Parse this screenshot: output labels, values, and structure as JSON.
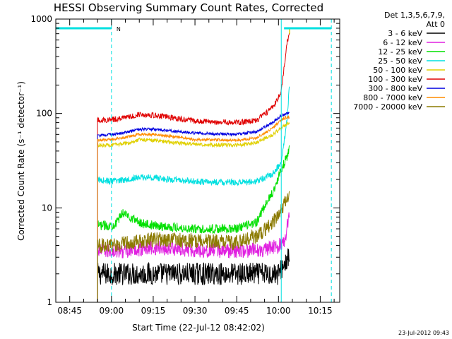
{
  "chart_data": {
    "type": "line",
    "title": "HESSI Observing Summary Count Rates, Corrected",
    "xlabel": "Start Time (22-Jul-12 08:42:02)",
    "ylabel": "Corrected Count Rate (s⁻¹ detector⁻¹)",
    "y_scale": "log",
    "ylim": [
      1,
      1000
    ],
    "xlim": [
      "08:40",
      "10:22"
    ],
    "x_ticks": [
      "08:45",
      "09:00",
      "09:15",
      "09:30",
      "09:45",
      "10:00",
      "10:15"
    ],
    "y_ticks": [
      "1",
      "10",
      "100",
      "1000"
    ],
    "grid": false,
    "legend_header": [
      "Det 1,3,5,6,7,9,",
      "Att 0"
    ],
    "legend_position": "right",
    "footer": "23-Jul-2012 09:43",
    "night_marker": "N",
    "series": [
      {
        "name": "3 - 6 keV",
        "color": "#000000",
        "noise": 0.12,
        "x": [
          "08:55",
          "09:00",
          "09:05",
          "09:15",
          "09:30",
          "09:45",
          "09:55",
          "10:00",
          "10:02",
          "10:04"
        ],
        "values": [
          2,
          2,
          2,
          2,
          2,
          2,
          2,
          2,
          2.5,
          3
        ]
      },
      {
        "name": "6 - 12 keV",
        "color": "#e020e0",
        "noise": 0.08,
        "x": [
          "08:55",
          "09:00",
          "09:05",
          "09:15",
          "09:30",
          "09:45",
          "09:55",
          "10:00",
          "10:02",
          "10:03",
          "10:04"
        ],
        "values": [
          3.5,
          3.5,
          3.5,
          3.8,
          3.6,
          3.5,
          3.6,
          3.9,
          4.5,
          6,
          10
        ]
      },
      {
        "name": "12 - 25 keV",
        "color": "#00e000",
        "noise": 0.05,
        "x": [
          "08:55",
          "09:00",
          "09:02",
          "09:04",
          "09:10",
          "09:15",
          "09:30",
          "09:45",
          "09:52",
          "09:58",
          "10:01",
          "10:03",
          "10:04"
        ],
        "values": [
          6.5,
          6.5,
          7,
          9,
          7,
          6.5,
          6,
          6,
          7,
          15,
          25,
          35,
          45
        ]
      },
      {
        "name": "25 - 50 keV",
        "color": "#00e0e0",
        "noise": 0.035,
        "x": [
          "08:55",
          "09:00",
          "09:05",
          "09:10",
          "09:15",
          "09:20",
          "09:30",
          "09:45",
          "09:52",
          "09:58",
          "10:01",
          "10:03",
          "10:04"
        ],
        "values": [
          20,
          19,
          20,
          21,
          21,
          20,
          19,
          18.5,
          19,
          23,
          30,
          80,
          220
        ]
      },
      {
        "name": "50 - 100 keV",
        "color": "#e0d000",
        "noise": 0.02,
        "x": [
          "08:55",
          "09:00",
          "09:05",
          "09:10",
          "09:15",
          "09:20",
          "09:30",
          "09:45",
          "09:52",
          "09:58",
          "10:01",
          "10:03",
          "10:04"
        ],
        "values": [
          46,
          46,
          48,
          53,
          52,
          50,
          47,
          46,
          49,
          60,
          70,
          78,
          80
        ]
      },
      {
        "name": "100 - 300 keV",
        "color": "#e00000",
        "noise": 0.03,
        "x": [
          "08:55",
          "09:00",
          "09:05",
          "09:10",
          "09:15",
          "09:20",
          "09:30",
          "09:45",
          "09:52",
          "09:58",
          "10:01",
          "10:02",
          "10:03",
          "10:04"
        ],
        "values": [
          85,
          86,
          90,
          98,
          96,
          92,
          83,
          80,
          84,
          115,
          170,
          300,
          550,
          700
        ]
      },
      {
        "name": "300 - 800 keV",
        "color": "#0000e0",
        "noise": 0.015,
        "x": [
          "08:55",
          "09:00",
          "09:05",
          "09:10",
          "09:15",
          "09:20",
          "09:30",
          "09:45",
          "09:52",
          "09:58",
          "10:01",
          "10:03",
          "10:04"
        ],
        "values": [
          58,
          60,
          63,
          68,
          68,
          66,
          62,
          60,
          64,
          80,
          95,
          100,
          102
        ]
      },
      {
        "name": "800 - 7000 keV",
        "color": "#ff8c00",
        "noise": 0.015,
        "x": [
          "08:55",
          "09:00",
          "09:05",
          "09:10",
          "09:15",
          "09:20",
          "09:30",
          "09:45",
          "09:52",
          "09:58",
          "10:01",
          "10:03",
          "10:04"
        ],
        "values": [
          52,
          53,
          56,
          60,
          60,
          58,
          53,
          52,
          55,
          70,
          85,
          92,
          90
        ]
      },
      {
        "name": "7000 - 20000 keV",
        "color": "#8b7a00",
        "noise": 0.08,
        "x": [
          "08:55",
          "09:00",
          "09:05",
          "09:15",
          "09:30",
          "09:45",
          "09:52",
          "09:58",
          "10:01",
          "10:03",
          "10:04"
        ],
        "values": [
          4,
          4,
          4.3,
          4.6,
          4.5,
          4.3,
          5,
          7,
          10,
          12,
          13
        ]
      }
    ],
    "flags": {
      "name": "attenuator/night flags",
      "color": "#00e0e0",
      "segments": [
        [
          "08:40",
          "09:00"
        ],
        [
          "10:02",
          "10:19"
        ]
      ],
      "level": 800
    },
    "vertical_markers": [
      {
        "x": "09:00",
        "style": "dashed"
      },
      {
        "x": "10:01",
        "style": "solid"
      },
      {
        "x": "10:19",
        "style": "dashed"
      }
    ],
    "flare_spike": {
      "x": "10:04",
      "values": [
        700,
        800
      ]
    }
  }
}
